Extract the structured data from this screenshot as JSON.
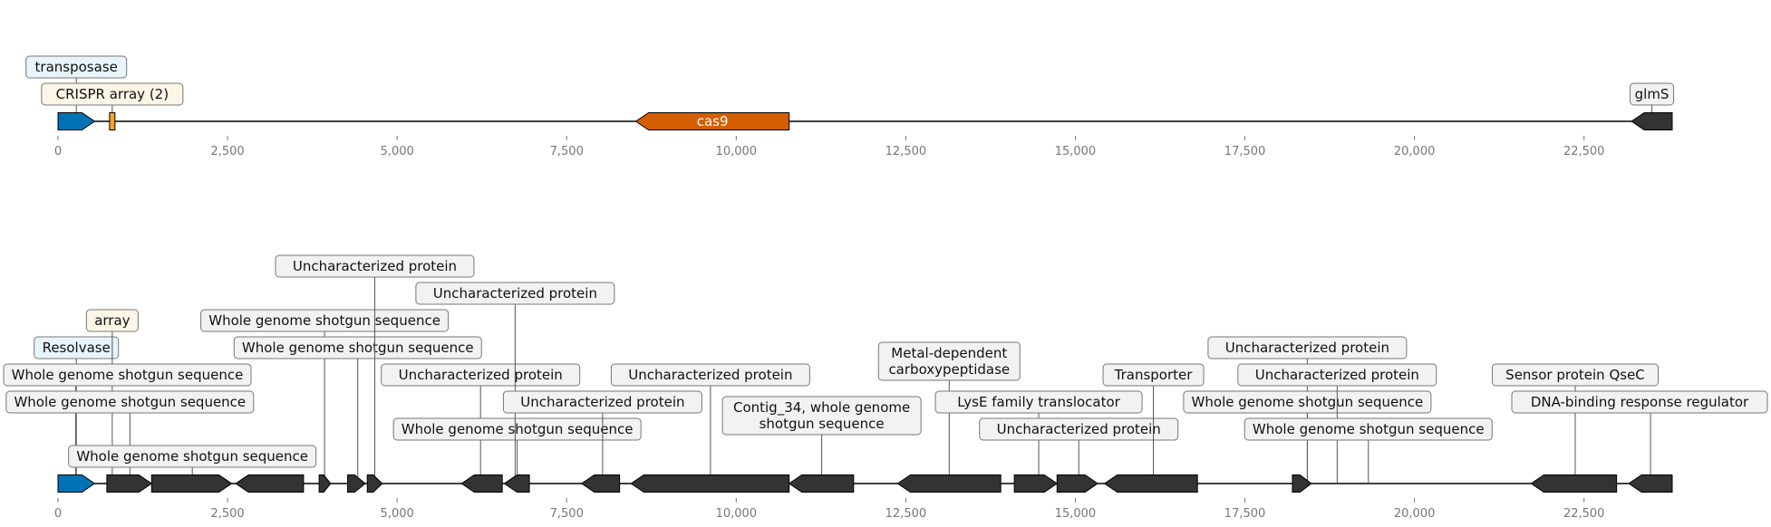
{
  "colors": {
    "transposase": "#0173b2",
    "crispr": "#f5a623",
    "cas9": "#d55e00",
    "other": "#333333",
    "label_fill_blue": "#e8f4fb",
    "label_fill_yellow": "#fdf6e6",
    "label_fill_grey": "#f2f2f2"
  },
  "top_track": {
    "length_bp": 23800,
    "ticks": [
      0,
      2500,
      5000,
      7500,
      10000,
      12500,
      15000,
      17500,
      20000,
      22500
    ],
    "tick_labels": [
      "0",
      "2,500",
      "5,000",
      "7,500",
      "10,000",
      "12,500",
      "15,000",
      "17,500",
      "20,000",
      "22,500"
    ],
    "features": [
      {
        "label": "transposase",
        "start": 0,
        "end": 540,
        "strand": 1,
        "type": "transposase",
        "label_level": 1
      },
      {
        "label": "CRISPR array (2)",
        "start": 760,
        "end": 840,
        "strand": 0,
        "type": "crispr",
        "label_level": 0
      },
      {
        "label": "cas9",
        "start": 8520,
        "end": 10780,
        "strand": -1,
        "type": "cas9",
        "label_inside": true
      },
      {
        "label": "glmS",
        "start": 23200,
        "end": 23800,
        "strand": -1,
        "type": "other",
        "label_level": 0
      }
    ]
  },
  "bottom_track": {
    "length_bp": 23800,
    "ticks": [
      0,
      2500,
      5000,
      7500,
      10000,
      12500,
      15000,
      17500,
      20000,
      22500
    ],
    "tick_labels": [
      "0",
      "2,500",
      "5,000",
      "7,500",
      "10,000",
      "12,500",
      "15,000",
      "17,500",
      "20,000",
      "22,500"
    ],
    "features": [
      {
        "label": "Resolvase",
        "start": 0,
        "end": 540,
        "strand": 1,
        "type": "transposase",
        "label_level": 4
      },
      {
        "label": "array",
        "start": 760,
        "end": 840,
        "strand": 1,
        "type": "crispr",
        "label_level": 5
      },
      {
        "label": "Whole genome shotgun sequence",
        "start": 0,
        "end": 540,
        "strand": 1,
        "type": "other",
        "label_level": 3,
        "anchor_bp": 260,
        "no_shape": true
      },
      {
        "label": "Whole genome shotgun sequence",
        "start": 720,
        "end": 1380,
        "strand": 1,
        "type": "other",
        "label_level": 2,
        "anchor_bp": 1060
      },
      {
        "label": "Whole genome shotgun sequence",
        "start": 1380,
        "end": 2560,
        "strand": 1,
        "type": "other",
        "label_level": 0,
        "anchor_bp": 1980
      },
      {
        "label": "Whole genome shotgun sequence",
        "start": 2620,
        "end": 3620,
        "strand": -1,
        "type": "other",
        "label_level": 5,
        "anchor_bp": 3930,
        "no_anchor_shape": true
      },
      {
        "label": "Whole genome shotgun sequence",
        "start": 3850,
        "end": 4020,
        "strand": 1,
        "type": "other",
        "label_level": 4,
        "anchor_bp": 4420
      },
      {
        "label": "Uncharacterized protein",
        "start": 4270,
        "end": 4530,
        "strand": 1,
        "type": "other",
        "label_level": 7,
        "anchor_bp": 4670
      },
      {
        "label": "",
        "start": 4560,
        "end": 4780,
        "strand": 1,
        "type": "other"
      },
      {
        "label": "Uncharacterized protein",
        "start": 5950,
        "end": 6550,
        "strand": -1,
        "type": "other",
        "label_level": 3,
        "anchor_bp": 6230
      },
      {
        "label": "Whole genome shotgun sequence",
        "start": 6580,
        "end": 6950,
        "strand": -1,
        "type": "other",
        "label_level": 1,
        "anchor_bp": 6770
      },
      {
        "label": "Uncharacterized protein",
        "start": 6950,
        "end": 7420,
        "strand": -1,
        "type": "other",
        "label_level": 6,
        "anchor_bp": 6740,
        "anchor_only": true
      },
      {
        "label": "Uncharacterized protein",
        "start": 7720,
        "end": 8280,
        "strand": -1,
        "type": "other",
        "label_level": 2,
        "anchor_bp": 8030
      },
      {
        "label": "Uncharacterized protein",
        "start": 8450,
        "end": 10780,
        "strand": -1,
        "type": "other",
        "label_level": 3,
        "anchor_bp": 9620
      },
      {
        "label": "Contig_34, whole genome\nshotgun sequence",
        "start": 10780,
        "end": 11730,
        "strand": -1,
        "type": "other",
        "label_level": 1.5,
        "anchor_bp": 11260
      },
      {
        "label": "",
        "start": 12380,
        "end": 13900,
        "strand": -1,
        "type": "other"
      },
      {
        "label": "Metal-dependent\ncarboxypeptidase",
        "start": 12380,
        "end": 13900,
        "strand": -1,
        "type": "other",
        "label_level": 3.5,
        "anchor_bp": 13140,
        "anchor_only": true
      },
      {
        "label": "LysE family translocator",
        "start": 14100,
        "end": 14730,
        "strand": 1,
        "type": "other",
        "label_level": 2,
        "anchor_bp": 14460
      },
      {
        "label": "Uncharacterized protein",
        "start": 14730,
        "end": 15330,
        "strand": 1,
        "type": "other",
        "label_level": 1,
        "anchor_bp": 15050
      },
      {
        "label": "Transporter",
        "start": 15430,
        "end": 16800,
        "strand": -1,
        "type": "other",
        "label_level": 3,
        "anchor_bp": 16150
      },
      {
        "label": "Uncharacterized protein",
        "start": 18200,
        "end": 18480,
        "strand": 1,
        "type": "other",
        "label_level": 4,
        "anchor_bp": 18420
      },
      {
        "label": "Whole genome shotgun sequence",
        "start": 18560,
        "end": 18950,
        "strand": -1,
        "type": "other",
        "label_level": 2,
        "anchor_bp": 18420,
        "anchor_only": true
      },
      {
        "label": "Uncharacterized protein",
        "start": 19050,
        "end": 19400,
        "strand": -1,
        "type": "other",
        "label_level": 3,
        "anchor_bp": 18860,
        "anchor_only": true
      },
      {
        "label": "Whole genome shotgun sequence",
        "start": 19580,
        "end": 21550,
        "strand": -1,
        "type": "other",
        "label_level": 1,
        "anchor_bp": 19320,
        "anchor_only": true
      },
      {
        "label": "Sensor protein QseC",
        "start": 21720,
        "end": 22980,
        "strand": -1,
        "type": "other",
        "label_level": 3,
        "anchor_bp": 22370
      },
      {
        "label": "DNA-binding response regulator",
        "start": 23160,
        "end": 23800,
        "strand": -1,
        "type": "other",
        "label_level": 2,
        "anchor_bp": 23480
      }
    ]
  }
}
